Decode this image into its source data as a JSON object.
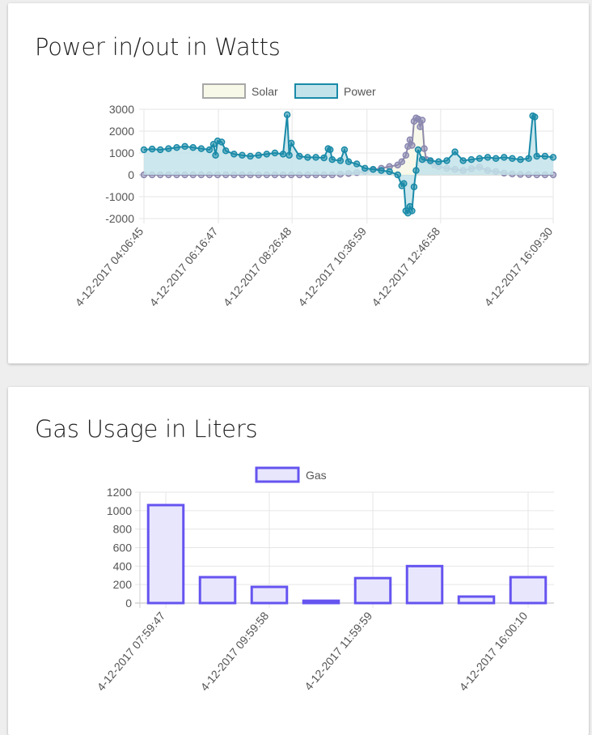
{
  "power_card": {
    "title": "Power in/out in Watts"
  },
  "gas_card": {
    "title": "Gas Usage in Liters"
  },
  "chart_data": [
    {
      "type": "line",
      "title": "Power in/out in Watts",
      "x_labels": [
        "4-12-2017 04:06:45",
        "4-12-2017 06:16:47",
        "4-12-2017 08:26:48",
        "4-12-2017 10:36:59",
        "4-12-2017 12:46:58",
        "4-12-2017 16:09:30"
      ],
      "ylim": [
        -2000,
        3000
      ],
      "yticks": [
        3000,
        2000,
        1000,
        0,
        -1000,
        -2000
      ],
      "grid": true,
      "legend_position": "top",
      "series": [
        {
          "name": "Solar",
          "fill_color": "#f7f8e8",
          "line_color": "#8f8aa8",
          "point_color": "#8a88b0",
          "points": [
            [
              0.0,
              0
            ],
            [
              0.02,
              0
            ],
            [
              0.04,
              0
            ],
            [
              0.06,
              0
            ],
            [
              0.08,
              0
            ],
            [
              0.1,
              0
            ],
            [
              0.12,
              0
            ],
            [
              0.14,
              0
            ],
            [
              0.16,
              0
            ],
            [
              0.18,
              0
            ],
            [
              0.2,
              0
            ],
            [
              0.22,
              0
            ],
            [
              0.24,
              0
            ],
            [
              0.26,
              0
            ],
            [
              0.28,
              0
            ],
            [
              0.3,
              0
            ],
            [
              0.32,
              0
            ],
            [
              0.34,
              0
            ],
            [
              0.36,
              0
            ],
            [
              0.38,
              0
            ],
            [
              0.4,
              0
            ],
            [
              0.42,
              0
            ],
            [
              0.44,
              0
            ],
            [
              0.46,
              0
            ],
            [
              0.48,
              30
            ],
            [
              0.5,
              60
            ],
            [
              0.52,
              100
            ],
            [
              0.54,
              160
            ],
            [
              0.56,
              230
            ],
            [
              0.58,
              300
            ],
            [
              0.6,
              380
            ],
            [
              0.62,
              450
            ],
            [
              0.63,
              600
            ],
            [
              0.64,
              900
            ],
            [
              0.645,
              1300
            ],
            [
              0.65,
              1600
            ],
            [
              0.655,
              1350
            ],
            [
              0.66,
              2450
            ],
            [
              0.665,
              2600
            ],
            [
              0.67,
              2550
            ],
            [
              0.675,
              2200
            ],
            [
              0.68,
              2500
            ],
            [
              0.685,
              1200
            ],
            [
              0.69,
              700
            ],
            [
              0.7,
              600
            ],
            [
              0.71,
              450
            ],
            [
              0.72,
              380
            ],
            [
              0.74,
              300
            ],
            [
              0.76,
              250
            ],
            [
              0.78,
              200
            ],
            [
              0.8,
              280
            ],
            [
              0.82,
              350
            ],
            [
              0.84,
              200
            ],
            [
              0.86,
              150
            ],
            [
              0.88,
              80
            ],
            [
              0.9,
              40
            ],
            [
              0.92,
              20
            ],
            [
              0.94,
              10
            ],
            [
              0.96,
              0
            ],
            [
              0.98,
              0
            ],
            [
              1.0,
              0
            ]
          ]
        },
        {
          "name": "Power",
          "fill_color": "#c3e3ea",
          "line_color": "#1a8aa8",
          "point_color": "#1a8aa8",
          "points": [
            [
              0.0,
              1150
            ],
            [
              0.02,
              1180
            ],
            [
              0.04,
              1150
            ],
            [
              0.06,
              1200
            ],
            [
              0.08,
              1250
            ],
            [
              0.1,
              1300
            ],
            [
              0.12,
              1250
            ],
            [
              0.14,
              1200
            ],
            [
              0.16,
              1150
            ],
            [
              0.17,
              1400
            ],
            [
              0.175,
              900
            ],
            [
              0.18,
              1550
            ],
            [
              0.19,
              1500
            ],
            [
              0.2,
              1100
            ],
            [
              0.22,
              950
            ],
            [
              0.24,
              900
            ],
            [
              0.26,
              850
            ],
            [
              0.28,
              900
            ],
            [
              0.3,
              950
            ],
            [
              0.32,
              1000
            ],
            [
              0.34,
              950
            ],
            [
              0.35,
              2750
            ],
            [
              0.355,
              900
            ],
            [
              0.36,
              1450
            ],
            [
              0.38,
              850
            ],
            [
              0.4,
              800
            ],
            [
              0.42,
              800
            ],
            [
              0.44,
              780
            ],
            [
              0.45,
              1200
            ],
            [
              0.455,
              1150
            ],
            [
              0.46,
              700
            ],
            [
              0.48,
              650
            ],
            [
              0.49,
              1150
            ],
            [
              0.5,
              600
            ],
            [
              0.52,
              500
            ],
            [
              0.54,
              300
            ],
            [
              0.56,
              250
            ],
            [
              0.58,
              200
            ],
            [
              0.6,
              150
            ],
            [
              0.62,
              0
            ],
            [
              0.63,
              -500
            ],
            [
              0.635,
              -400
            ],
            [
              0.64,
              -1650
            ],
            [
              0.645,
              -1750
            ],
            [
              0.65,
              -1450
            ],
            [
              0.655,
              -1650
            ],
            [
              0.66,
              -550
            ],
            [
              0.665,
              200
            ],
            [
              0.67,
              1150
            ],
            [
              0.68,
              700
            ],
            [
              0.7,
              650
            ],
            [
              0.72,
              600
            ],
            [
              0.74,
              650
            ],
            [
              0.76,
              1050
            ],
            [
              0.78,
              650
            ],
            [
              0.8,
              700
            ],
            [
              0.82,
              750
            ],
            [
              0.84,
              800
            ],
            [
              0.86,
              750
            ],
            [
              0.88,
              800
            ],
            [
              0.9,
              750
            ],
            [
              0.92,
              700
            ],
            [
              0.94,
              750
            ],
            [
              0.95,
              2700
            ],
            [
              0.955,
              2650
            ],
            [
              0.96,
              850
            ],
            [
              0.98,
              850
            ],
            [
              1.0,
              800
            ]
          ]
        }
      ]
    },
    {
      "type": "bar",
      "title": "Gas Usage in Liters",
      "categories": [
        "4-12-2017 07:59:47",
        "",
        "4-12-2017 09:59:58",
        "",
        "4-12-2017 11:59:59",
        "",
        "",
        "4-12-2017 16:00:10"
      ],
      "ylim": [
        0,
        1200
      ],
      "yticks": [
        1200,
        1000,
        800,
        600,
        400,
        200,
        0
      ],
      "grid": true,
      "legend_position": "top",
      "series": [
        {
          "name": "Gas",
          "fill_color": "#e8e6fc",
          "border_color": "#6554f0",
          "values": [
            1060,
            280,
            175,
            25,
            270,
            400,
            70,
            280
          ]
        }
      ]
    }
  ]
}
